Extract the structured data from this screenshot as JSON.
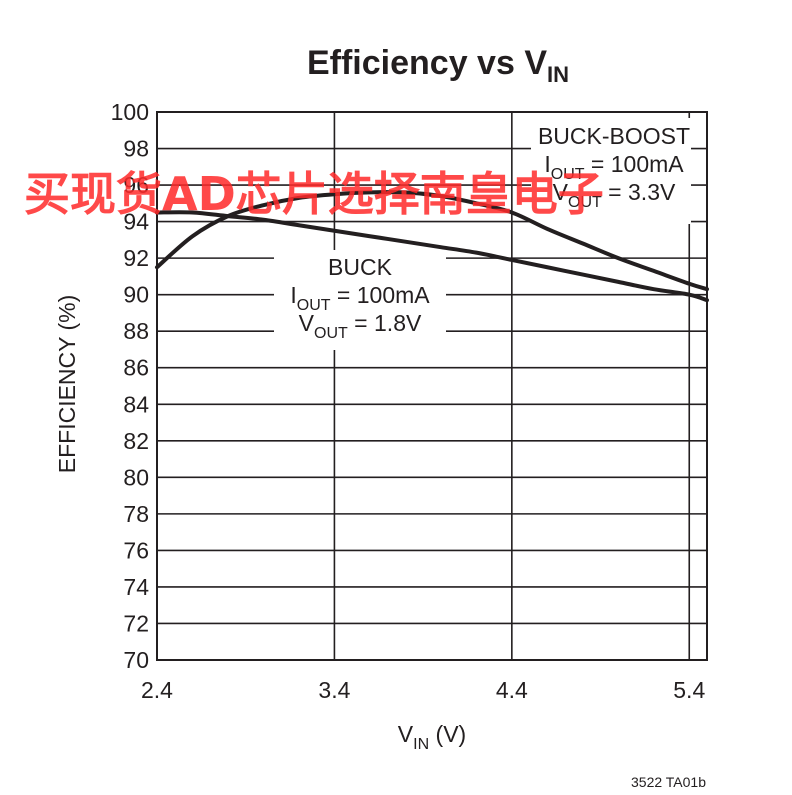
{
  "chart_data": {
    "type": "line",
    "title": {
      "main": "Efficiency vs V",
      "sub": "IN"
    },
    "xlabel": {
      "main": "V",
      "sub": "IN",
      "suffix": " (V)"
    },
    "ylabel": "EFFICIENCY (%)",
    "xlim": [
      2.4,
      5.5
    ],
    "ylim": [
      70,
      100
    ],
    "xticks": [
      2.4,
      3.4,
      4.4,
      5.4
    ],
    "xtick_labels": [
      "2.4",
      "3.4",
      "4.4",
      "5.4"
    ],
    "yticks": [
      70,
      72,
      74,
      76,
      78,
      80,
      82,
      84,
      86,
      88,
      90,
      92,
      94,
      96,
      98,
      100
    ],
    "ytick_labels": [
      "70",
      "72",
      "74",
      "76",
      "78",
      "80",
      "82",
      "84",
      "86",
      "88",
      "90",
      "92",
      "94",
      "96",
      "98",
      "100"
    ],
    "grid": true,
    "series": [
      {
        "id": "buck-boost",
        "x": [
          2.4,
          2.6,
          2.8,
          3.0,
          3.2,
          3.4,
          3.6,
          3.8,
          4.0,
          4.2,
          4.4,
          4.6,
          4.8,
          5.0,
          5.2,
          5.4,
          5.5
        ],
        "values": [
          91.5,
          93.2,
          94.3,
          94.9,
          95.3,
          95.5,
          95.6,
          95.6,
          95.4,
          95.0,
          94.5,
          93.6,
          92.8,
          92.0,
          91.3,
          90.6,
          90.3
        ]
      },
      {
        "id": "buck",
        "x": [
          2.4,
          2.6,
          2.8,
          3.0,
          3.2,
          3.4,
          3.6,
          3.8,
          4.0,
          4.2,
          4.4,
          4.6,
          4.8,
          5.0,
          5.2,
          5.4,
          5.5
        ],
        "values": [
          94.5,
          94.5,
          94.3,
          94.1,
          93.8,
          93.5,
          93.2,
          92.9,
          92.6,
          92.3,
          91.9,
          91.5,
          91.1,
          90.7,
          90.3,
          90.0,
          89.7
        ]
      }
    ],
    "annotations": [
      {
        "id": "buck-boost-label",
        "lines": [
          {
            "main": "BUCK-BOOST"
          },
          {
            "main": "I",
            "sub": "OUT",
            "rest": " = 100mA"
          },
          {
            "main": "V",
            "sub": "OUT",
            "rest": " = 3.3V"
          }
        ]
      },
      {
        "id": "buck-label",
        "lines": [
          {
            "main": "BUCK"
          },
          {
            "main": "I",
            "sub": "OUT",
            "rest": " = 100mA"
          },
          {
            "main": "V",
            "sub": "OUT",
            "rest": " = 1.8V"
          }
        ]
      }
    ],
    "code": "3522 TA01b"
  },
  "watermark": "买现货AD芯片选择南皇电子",
  "colors": {
    "line": "#231f20",
    "watermark": "#ff2a2a"
  }
}
